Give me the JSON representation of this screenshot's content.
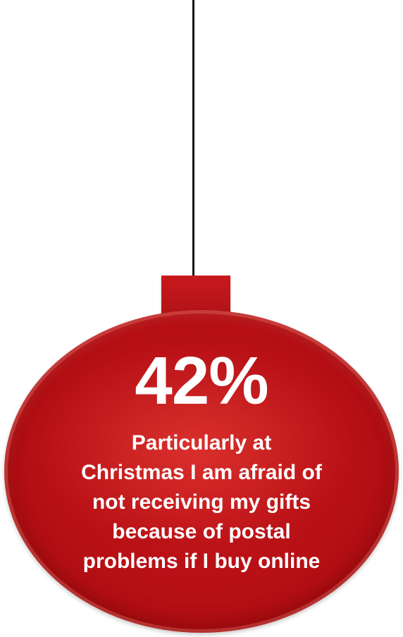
{
  "ornament": {
    "percent": "42%",
    "caption_lines": [
      "Particularly at",
      "Christmas I am afraid of",
      "not receiving my gifts",
      "because of postal",
      "problems if I buy online"
    ],
    "colors": {
      "ball": "#b50f14",
      "cap": "#c8191d",
      "string": "#111111",
      "text": "#ffffff"
    }
  }
}
